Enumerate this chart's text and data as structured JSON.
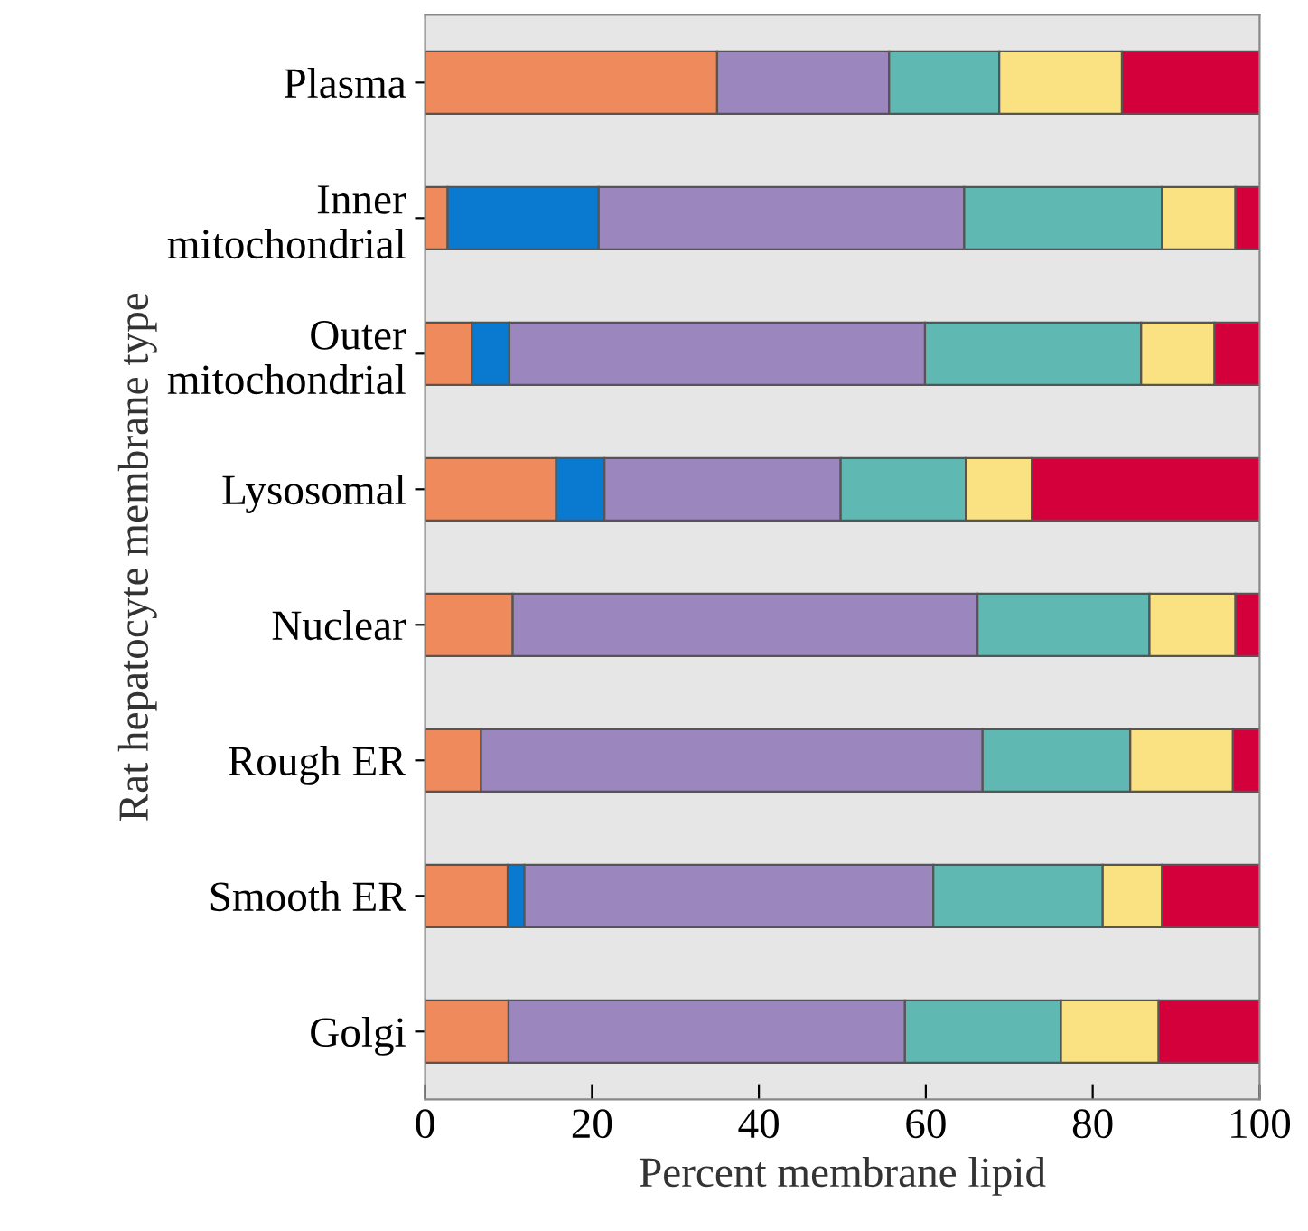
{
  "chart_data": {
    "type": "bar",
    "orientation": "horizontal",
    "stacked": true,
    "xlabel": "Percent membrane lipid",
    "ylabel": "Rat hepatocyte membrane type",
    "categories": [
      "Plasma",
      "Inner\nmitochondrial",
      "Outer\nmitochondrial",
      "Lysosomal",
      "Nuclear",
      "Rough ER",
      "Smooth ER",
      "Golgi"
    ],
    "series": [
      {
        "color": "#ee8a5c",
        "values": [
          35,
          2.7,
          5.6,
          15.7,
          10.5,
          6.7,
          9.9,
          10
        ]
      },
      {
        "color": "#0a7ad0",
        "values": [
          null,
          18.1,
          4.5,
          5.8,
          null,
          null,
          2,
          null
        ]
      },
      {
        "color": "#9b86bd",
        "values": [
          20.6,
          43.8,
          49.8,
          28.3,
          55.7,
          60.1,
          49,
          47.5
        ]
      },
      {
        "color": "#5fb8b2",
        "values": [
          13.2,
          23.7,
          25.9,
          15,
          20.6,
          17.7,
          20.3,
          18.7
        ]
      },
      {
        "color": "#fae182",
        "values": [
          14.7,
          8.8,
          8.8,
          7.9,
          10.3,
          12.3,
          7.1,
          11.7
        ]
      },
      {
        "color": "#d4003c",
        "values": [
          16.5,
          2.9,
          5.4,
          27.3,
          2.9,
          3.2,
          11.7,
          12.1
        ]
      }
    ],
    "xlim": [
      0,
      100
    ],
    "xticks": [
      0,
      20,
      40,
      60,
      80,
      100
    ],
    "grid": false,
    "legend": false
  }
}
